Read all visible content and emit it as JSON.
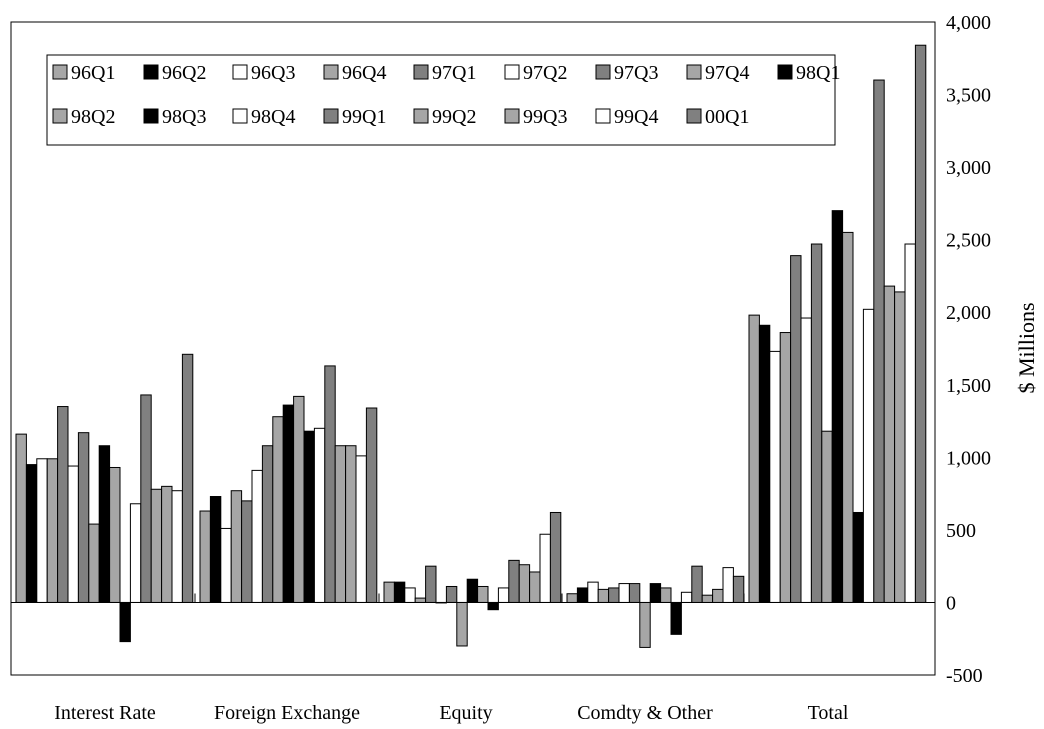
{
  "chart_data": {
    "type": "bar",
    "categories": [
      "Interest Rate",
      "Foreign Exchange",
      "Equity",
      "Comdty & Other",
      "Total"
    ],
    "ylabel": "$ Millions",
    "ylim": [
      -500,
      4000
    ],
    "yticks": [
      "4,000",
      "3,500",
      "3,000",
      "2,500",
      "2,000",
      "1,500",
      "1,000",
      "500",
      "0",
      "-500"
    ],
    "ytick_values": [
      4000,
      3500,
      3000,
      2500,
      2000,
      1500,
      1000,
      500,
      0,
      -500
    ],
    "y_axis_side": "right",
    "grid": false,
    "legend_position": "top-left",
    "colors": {
      "gray": "#a6a6a6",
      "black": "#000000",
      "white": "#ffffff",
      "dark_gray": "#808080"
    },
    "series": [
      {
        "name": "96Q1",
        "color": "#a6a6a6",
        "values": [
          1160,
          630,
          140,
          60,
          1980
        ]
      },
      {
        "name": "96Q2",
        "color": "#000000",
        "values": [
          950,
          730,
          140,
          100,
          1910
        ]
      },
      {
        "name": "96Q3",
        "color": "#ffffff",
        "values": [
          990,
          510,
          100,
          140,
          1730
        ]
      },
      {
        "name": "96Q4",
        "color": "#a6a6a6",
        "values": [
          990,
          770,
          30,
          90,
          1860
        ]
      },
      {
        "name": "97Q1",
        "color": "#808080",
        "values": [
          1350,
          700,
          250,
          100,
          2390
        ]
      },
      {
        "name": "97Q2",
        "color": "#ffffff",
        "values": [
          940,
          910,
          0,
          130,
          1960
        ]
      },
      {
        "name": "97Q3",
        "color": "#808080",
        "values": [
          1170,
          1080,
          110,
          130,
          2470
        ]
      },
      {
        "name": "97Q4",
        "color": "#a6a6a6",
        "values": [
          540,
          1280,
          -300,
          -310,
          1180
        ]
      },
      {
        "name": "98Q1",
        "color": "#000000",
        "values": [
          1080,
          1360,
          160,
          130,
          2700
        ]
      },
      {
        "name": "98Q2",
        "color": "#a6a6a6",
        "values": [
          930,
          1420,
          110,
          100,
          2550
        ]
      },
      {
        "name": "98Q3",
        "color": "#000000",
        "values": [
          -270,
          1180,
          -50,
          -220,
          620
        ]
      },
      {
        "name": "98Q4",
        "color": "#ffffff",
        "values": [
          680,
          1200,
          100,
          70,
          2020
        ]
      },
      {
        "name": "99Q1",
        "color": "#808080",
        "values": [
          1430,
          1630,
          290,
          250,
          3600
        ]
      },
      {
        "name": "99Q2",
        "color": "#a6a6a6",
        "values": [
          780,
          1080,
          260,
          50,
          2180
        ]
      },
      {
        "name": "99Q3",
        "color": "#a6a6a6",
        "values": [
          800,
          1080,
          210,
          90,
          2140
        ]
      },
      {
        "name": "99Q4",
        "color": "#ffffff",
        "values": [
          770,
          1010,
          470,
          240,
          2470
        ]
      },
      {
        "name": "00Q1",
        "color": "#808080",
        "values": [
          1710,
          1340,
          620,
          180,
          3840
        ]
      }
    ]
  }
}
